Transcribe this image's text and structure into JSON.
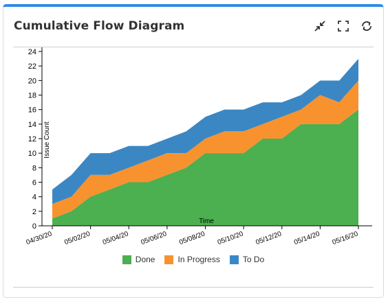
{
  "header": {
    "title": "Cumulative Flow Diagram"
  },
  "icons": {
    "collapse": "collapse-icon",
    "fullscreen": "fullscreen-icon",
    "refresh": "refresh-icon"
  },
  "colors": {
    "accent": "#2f8be6",
    "done": "#4caf50",
    "in_progress": "#f7922f",
    "to_do": "#3b87c4"
  },
  "chart_data": {
    "type": "area",
    "stacked": true,
    "xlabel": "Time",
    "ylabel": "Issue Count",
    "x": [
      "04/30/20",
      "05/01/20",
      "05/02/20",
      "05/03/20",
      "05/04/20",
      "05/05/20",
      "05/06/20",
      "05/07/20",
      "05/08/20",
      "05/09/20",
      "05/10/20",
      "05/11/20",
      "05/12/20",
      "05/13/20",
      "05/14/20",
      "05/15/20",
      "05/16/20"
    ],
    "x_tick_labels": [
      "04/30/20",
      "05/02/20",
      "05/04/20",
      "05/06/20",
      "05/08/20",
      "05/10/20",
      "05/12/20",
      "05/14/20",
      "05/16/20"
    ],
    "ylim": [
      0,
      24
    ],
    "y_ticks": [
      0,
      2,
      4,
      6,
      8,
      10,
      12,
      14,
      16,
      18,
      20,
      22,
      24
    ],
    "legend_position": "bottom",
    "grid": false,
    "series": [
      {
        "name": "Done",
        "color": "#4caf50",
        "values": [
          1,
          2,
          4,
          5,
          6,
          6,
          7,
          8,
          10,
          10,
          10,
          12,
          12,
          14,
          14,
          14,
          16
        ]
      },
      {
        "name": "In Progress",
        "color": "#f7922f",
        "values": [
          2,
          2,
          3,
          2,
          2,
          3,
          3,
          2,
          2,
          3,
          3,
          2,
          3,
          2,
          4,
          3,
          4
        ]
      },
      {
        "name": "To Do",
        "color": "#3b87c4",
        "values": [
          2,
          3,
          3,
          3,
          3,
          2,
          2,
          3,
          3,
          3,
          3,
          3,
          2,
          2,
          2,
          3,
          3
        ]
      }
    ]
  }
}
